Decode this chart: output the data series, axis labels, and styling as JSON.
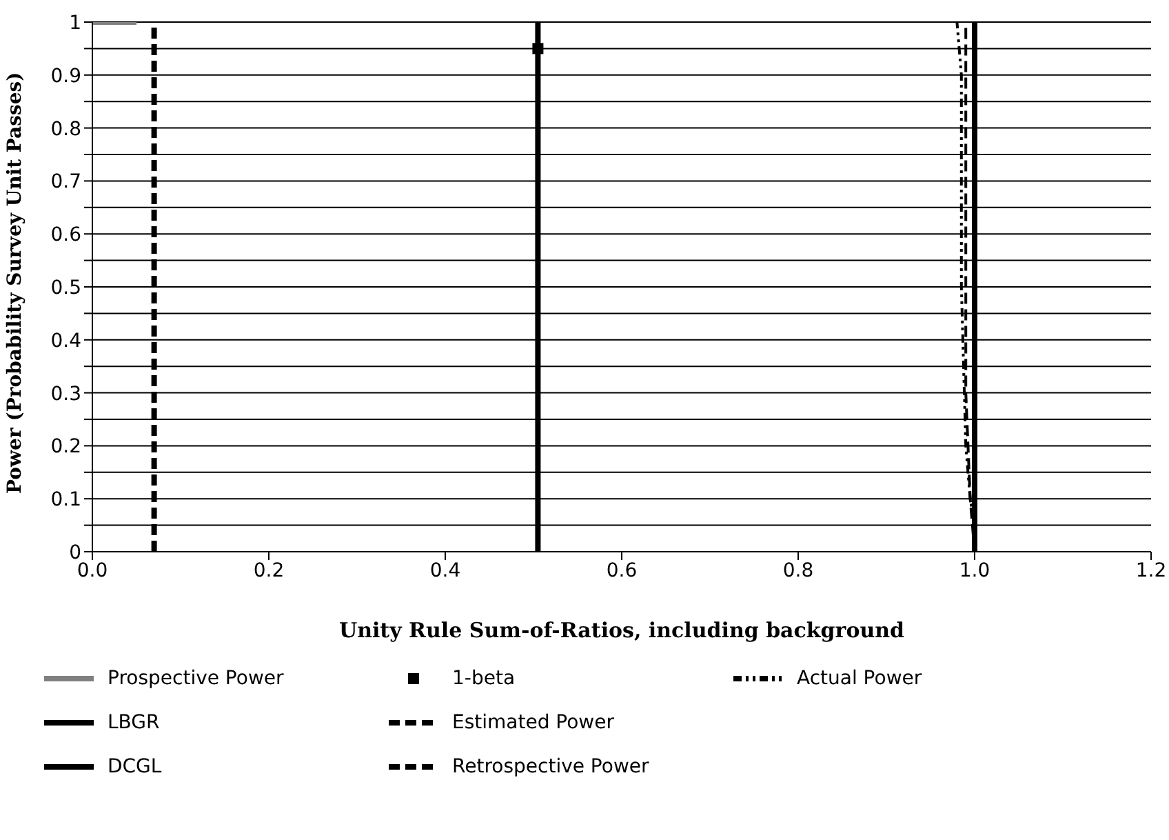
{
  "chart_data": {
    "type": "line",
    "xlabel": "Unity Rule Sum-of-Ratios, including background",
    "ylabel": "Power (Probability Survey Unit Passes)",
    "xlim": [
      0,
      1.2
    ],
    "xticks": [
      {
        "value": 0,
        "label": "0.0"
      },
      {
        "value": 0.2,
        "label": "0.2"
      },
      {
        "value": 0.4,
        "label": "0.4"
      },
      {
        "value": 0.6,
        "label": "0.6"
      },
      {
        "value": 0.8,
        "label": "0.8"
      },
      {
        "value": 1,
        "label": "1.0"
      },
      {
        "value": 1.2,
        "label": "1.2"
      }
    ],
    "ylim": [
      0,
      1
    ],
    "yticks": [
      0,
      {
        "value": 0.05,
        "label": null
      },
      0.1,
      {
        "value": 0.15,
        "label": null
      },
      0.2,
      {
        "value": 0.25,
        "label": null
      },
      0.3,
      {
        "value": 0.35,
        "label": null
      },
      0.4,
      {
        "value": 0.45,
        "label": null
      },
      0.5,
      {
        "value": 0.55,
        "label": null
      },
      0.6,
      {
        "value": 0.65,
        "label": null
      },
      0.7,
      {
        "value": 0.75,
        "label": null
      },
      0.8,
      {
        "value": 0.85,
        "label": null
      },
      0.9,
      {
        "value": 0.95,
        "label": null
      },
      1
    ],
    "grid": "y",
    "legend": "bottom",
    "series": [
      {
        "name": "Prospective Power",
        "color": "#808080",
        "line_style": "solid",
        "x": [
          0,
          0.05
        ],
        "values": [
          1,
          1
        ]
      },
      {
        "name": "LBGR",
        "color": "#000000",
        "line_style": "solid",
        "x": [
          0.505,
          0.505
        ],
        "values": [
          0,
          1
        ]
      },
      {
        "name": "DCGL",
        "color": "#000000",
        "line_style": "solid",
        "x": [
          1,
          1
        ],
        "values": [
          0,
          1
        ]
      },
      {
        "name": "1-beta",
        "type": "scatter",
        "marker": "square",
        "color": "#000000",
        "x": [
          0.505
        ],
        "values": [
          0.95
        ]
      },
      {
        "name": "Estimated Power",
        "color": "#000000",
        "line_style": "dashed",
        "x": [
          0.07,
          0.07
        ],
        "values": [
          0,
          1
        ]
      },
      {
        "name": "Retrospective Power",
        "color": "#000000",
        "line_style": "dashed",
        "x": [
          1,
          0.995,
          0.99,
          0.99,
          0.99
        ],
        "values": [
          0,
          0.1,
          0.3,
          0.7,
          1
        ]
      },
      {
        "name": "Actual Power",
        "color": "#000000",
        "line_style": "dotted",
        "x": [
          1,
          1,
          0.995,
          0.99,
          0.985,
          0.985,
          0.98
        ],
        "values": [
          0,
          0.05,
          0.1,
          0.2,
          0.5,
          0.9,
          1
        ]
      }
    ]
  }
}
